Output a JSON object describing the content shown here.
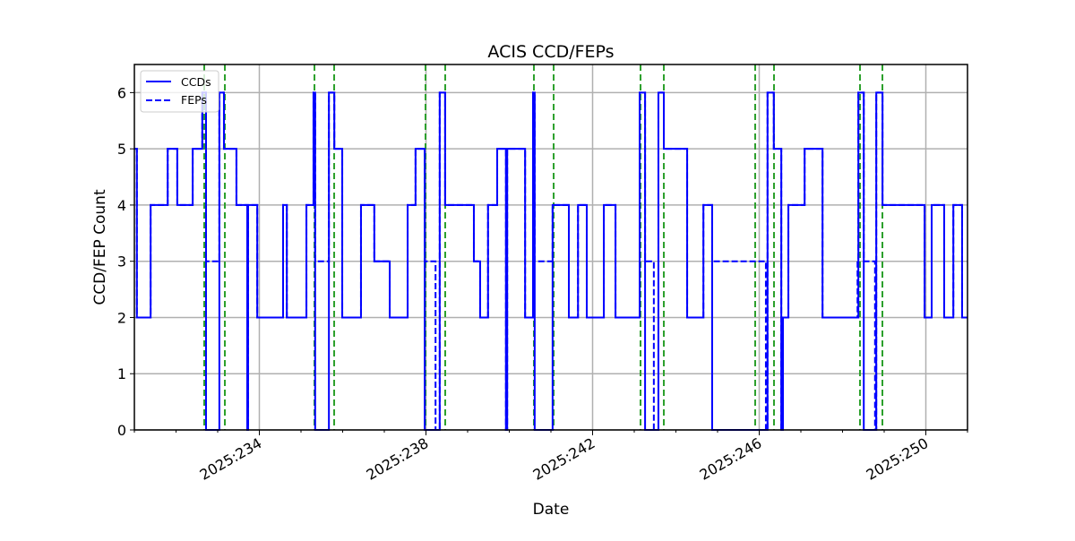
{
  "chart_data": {
    "type": "line",
    "title": "ACIS CCD/FEPs",
    "xlabel": "Date",
    "ylabel": "CCD/FEP Count",
    "xlim": [
      231.0,
      251.0
    ],
    "ylim": [
      0,
      6.5
    ],
    "grid": true,
    "legend": {
      "placement": "top-left",
      "entries": [
        "CCDs",
        "FEPs"
      ]
    },
    "x_unit": "day of year 2025",
    "xticks": [
      234,
      238,
      242,
      246,
      250
    ],
    "xtick_labels": [
      "2025:234",
      "2025:238",
      "2025:242",
      "2025:246",
      "2025:250"
    ],
    "yticks": [
      0,
      1,
      2,
      3,
      4,
      5,
      6
    ],
    "ytick_labels": [
      "0",
      "1",
      "2",
      "3",
      "4",
      "5",
      "6"
    ],
    "colors": {
      "series": "#0000ff",
      "vlines": "#2ca02c",
      "grid": "#b0b0b0"
    },
    "series": [
      {
        "name": "CCDs",
        "style": "solid",
        "steps": [
          [
            231.0,
            5
          ],
          [
            231.06,
            2
          ],
          [
            231.39,
            4
          ],
          [
            231.8,
            5
          ],
          [
            232.03,
            4
          ],
          [
            232.4,
            5
          ],
          [
            232.63,
            6
          ],
          [
            232.72,
            0
          ],
          [
            233.04,
            6
          ],
          [
            233.15,
            5
          ],
          [
            233.45,
            4
          ],
          [
            233.71,
            0
          ],
          [
            233.73,
            4
          ],
          [
            233.95,
            2
          ],
          [
            234.57,
            4
          ],
          [
            234.66,
            2
          ],
          [
            235.13,
            4
          ],
          [
            235.3,
            6
          ],
          [
            235.34,
            0
          ],
          [
            235.67,
            6
          ],
          [
            235.8,
            5
          ],
          [
            235.99,
            2
          ],
          [
            236.44,
            4
          ],
          [
            236.76,
            3
          ],
          [
            237.13,
            2
          ],
          [
            237.56,
            4
          ],
          [
            237.75,
            5
          ],
          [
            237.97,
            0
          ],
          [
            238.33,
            6
          ],
          [
            238.46,
            4
          ],
          [
            239.15,
            3
          ],
          [
            239.3,
            2
          ],
          [
            239.49,
            4
          ],
          [
            239.71,
            5
          ],
          [
            239.92,
            0
          ],
          [
            239.95,
            5
          ],
          [
            240.38,
            2
          ],
          [
            240.57,
            6
          ],
          [
            240.61,
            0
          ],
          [
            241.04,
            4
          ],
          [
            241.43,
            2
          ],
          [
            241.65,
            4
          ],
          [
            241.86,
            2
          ],
          [
            242.27,
            4
          ],
          [
            242.55,
            2
          ],
          [
            243.13,
            6
          ],
          [
            243.26,
            0
          ],
          [
            243.58,
            6
          ],
          [
            243.71,
            5
          ],
          [
            244.27,
            2
          ],
          [
            244.66,
            4
          ],
          [
            244.87,
            0
          ],
          [
            246.2,
            6
          ],
          [
            246.35,
            5
          ],
          [
            246.53,
            0
          ],
          [
            246.57,
            2
          ],
          [
            246.7,
            4
          ],
          [
            247.09,
            5
          ],
          [
            247.52,
            2
          ],
          [
            248.38,
            6
          ],
          [
            248.51,
            0
          ],
          [
            248.81,
            6
          ],
          [
            248.96,
            4
          ],
          [
            249.97,
            2
          ],
          [
            250.14,
            4
          ],
          [
            250.44,
            2
          ],
          [
            250.66,
            4
          ],
          [
            250.87,
            2
          ],
          [
            251.0,
            2
          ]
        ]
      },
      {
        "name": "FEPs",
        "style": "dashed",
        "steps": [
          [
            231.0,
            5
          ],
          [
            231.06,
            2
          ],
          [
            231.39,
            4
          ],
          [
            231.8,
            5
          ],
          [
            232.03,
            4
          ],
          [
            232.4,
            5
          ],
          [
            232.63,
            6
          ],
          [
            232.72,
            3
          ],
          [
            233.04,
            6
          ],
          [
            233.15,
            5
          ],
          [
            233.45,
            4
          ],
          [
            233.71,
            0
          ],
          [
            233.73,
            4
          ],
          [
            233.95,
            2
          ],
          [
            234.57,
            4
          ],
          [
            234.66,
            2
          ],
          [
            235.13,
            4
          ],
          [
            235.3,
            6
          ],
          [
            235.34,
            3
          ],
          [
            235.67,
            6
          ],
          [
            235.8,
            5
          ],
          [
            235.99,
            2
          ],
          [
            236.44,
            4
          ],
          [
            236.76,
            3
          ],
          [
            237.13,
            2
          ],
          [
            237.56,
            4
          ],
          [
            237.75,
            5
          ],
          [
            237.97,
            3
          ],
          [
            238.23,
            0
          ],
          [
            238.33,
            6
          ],
          [
            238.46,
            4
          ],
          [
            239.15,
            3
          ],
          [
            239.3,
            2
          ],
          [
            239.49,
            4
          ],
          [
            239.71,
            5
          ],
          [
            239.92,
            0
          ],
          [
            239.95,
            5
          ],
          [
            240.38,
            2
          ],
          [
            240.57,
            6
          ],
          [
            240.61,
            3
          ],
          [
            241.04,
            4
          ],
          [
            241.43,
            2
          ],
          [
            241.65,
            4
          ],
          [
            241.86,
            2
          ],
          [
            242.27,
            4
          ],
          [
            242.55,
            2
          ],
          [
            243.13,
            6
          ],
          [
            243.26,
            3
          ],
          [
            243.47,
            0
          ],
          [
            243.58,
            6
          ],
          [
            243.71,
            5
          ],
          [
            244.27,
            2
          ],
          [
            244.66,
            4
          ],
          [
            244.87,
            3
          ],
          [
            246.16,
            0
          ],
          [
            246.2,
            6
          ],
          [
            246.35,
            5
          ],
          [
            246.53,
            0
          ],
          [
            246.57,
            2
          ],
          [
            246.7,
            4
          ],
          [
            247.09,
            5
          ],
          [
            247.52,
            2
          ],
          [
            248.36,
            3
          ],
          [
            248.38,
            6
          ],
          [
            248.51,
            3
          ],
          [
            248.78,
            0
          ],
          [
            248.81,
            6
          ],
          [
            248.96,
            4
          ],
          [
            249.97,
            2
          ],
          [
            250.14,
            4
          ],
          [
            250.44,
            2
          ],
          [
            250.66,
            4
          ],
          [
            250.87,
            2
          ],
          [
            251.0,
            2
          ]
        ]
      }
    ],
    "vlines": [
      232.677,
      233.172,
      235.323,
      235.796,
      237.989,
      238.462,
      240.591,
      241.065,
      243.151,
      243.71,
      245.903,
      246.355,
      248.419,
      248.957
    ]
  }
}
